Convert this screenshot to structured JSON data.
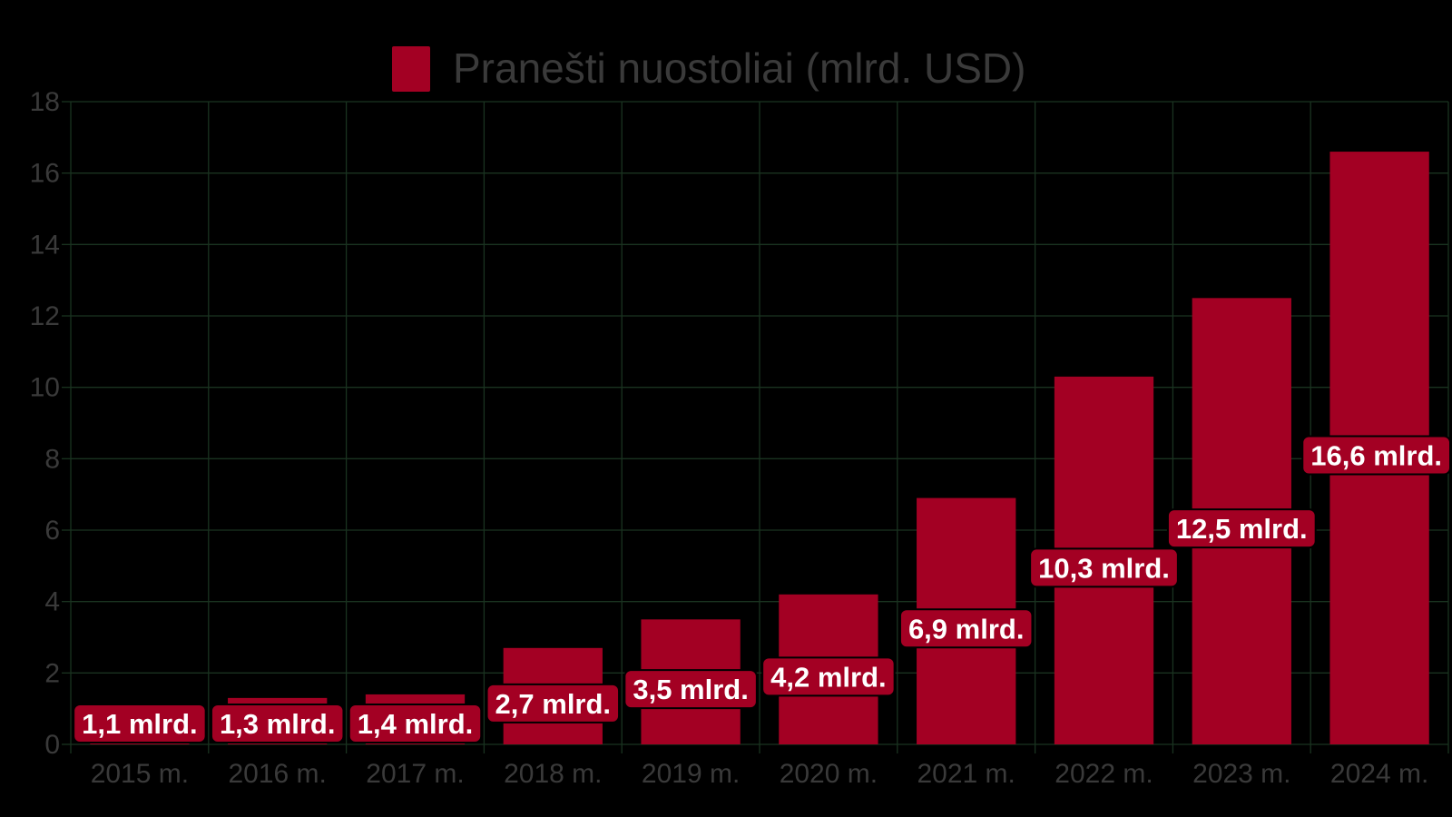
{
  "colors": {
    "background": "#000000",
    "bar": "#a30023",
    "grid": "#1a3320",
    "text": "#3a3a3a",
    "label_text": "#ffffff"
  },
  "legend": {
    "label": "Pranešti nuostoliai (mlrd. USD)",
    "placement": "top-center"
  },
  "chart_data": {
    "type": "bar",
    "categories": [
      "2015 m.",
      "2016 m.",
      "2017 m.",
      "2018 m.",
      "2019 m.",
      "2020 m.",
      "2021 m.",
      "2022 m.",
      "2023 m.",
      "2024 m."
    ],
    "series": [
      {
        "name": "Pranešti nuostoliai (mlrd. USD)",
        "values": [
          1.1,
          1.3,
          1.4,
          2.7,
          3.5,
          4.2,
          6.9,
          10.3,
          12.5,
          16.6
        ],
        "data_labels": [
          "1,1 mlrd.",
          "1,3 mlrd.",
          "1,4 mlrd.",
          "2,7 mlrd.",
          "3,5 mlrd.",
          "4,2 mlrd.",
          "6,9 mlrd.",
          "10,3 mlrd.",
          "12,5 mlrd.",
          "16,6 mlrd."
        ]
      }
    ],
    "title": "",
    "xlabel": "",
    "ylabel": "",
    "ylim": [
      0,
      18
    ],
    "yticks": [
      "0",
      "2",
      "4",
      "6",
      "8",
      "10",
      "12",
      "14",
      "16",
      "18"
    ],
    "grid": true,
    "legend_position": "top"
  }
}
